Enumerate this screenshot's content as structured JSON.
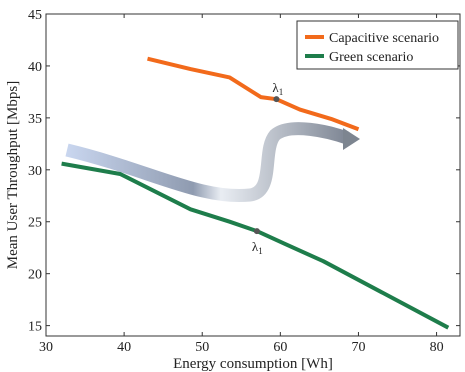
{
  "chart_data": {
    "type": "line",
    "xlabel": "Energy consumption [Wh]",
    "ylabel": "Mean User Throughput [Mbps]",
    "xlim": [
      30,
      83
    ],
    "ylim": [
      14,
      45
    ],
    "xticks": [
      30,
      40,
      50,
      60,
      70,
      80
    ],
    "yticks": [
      15,
      20,
      25,
      30,
      35,
      40,
      45
    ],
    "grid": false,
    "legend_position": "top-right",
    "series": [
      {
        "name": "Capacitive scenario",
        "color": "#f26a1b",
        "points": [
          [
            43,
            40.7
          ],
          [
            48.5,
            39.7
          ],
          [
            53.5,
            38.9
          ],
          [
            57.5,
            37
          ],
          [
            59.5,
            36.8
          ],
          [
            62.5,
            35.8
          ],
          [
            66.5,
            34.9
          ],
          [
            70,
            33.9
          ]
        ]
      },
      {
        "name": "Green scenario",
        "color": "#1e7d4b",
        "points": [
          [
            32,
            30.6
          ],
          [
            39.5,
            29.6
          ],
          [
            48.5,
            26.2
          ],
          [
            53.5,
            25
          ],
          [
            57,
            24.1
          ],
          [
            60.5,
            22.9
          ],
          [
            65.5,
            21.2
          ],
          [
            72.5,
            18.4
          ],
          [
            81.5,
            14.8
          ]
        ]
      }
    ],
    "annotations": [
      {
        "text": "λ",
        "sub": "1",
        "series": 0,
        "marker": [
          59.5,
          36.8
        ]
      },
      {
        "text": "λ",
        "sub": "1",
        "series": 1,
        "marker": [
          57,
          24.1
        ]
      }
    ],
    "transition_arrow": {
      "description_color_start": "#c6d3ec",
      "color_end": "#7d8590"
    }
  }
}
